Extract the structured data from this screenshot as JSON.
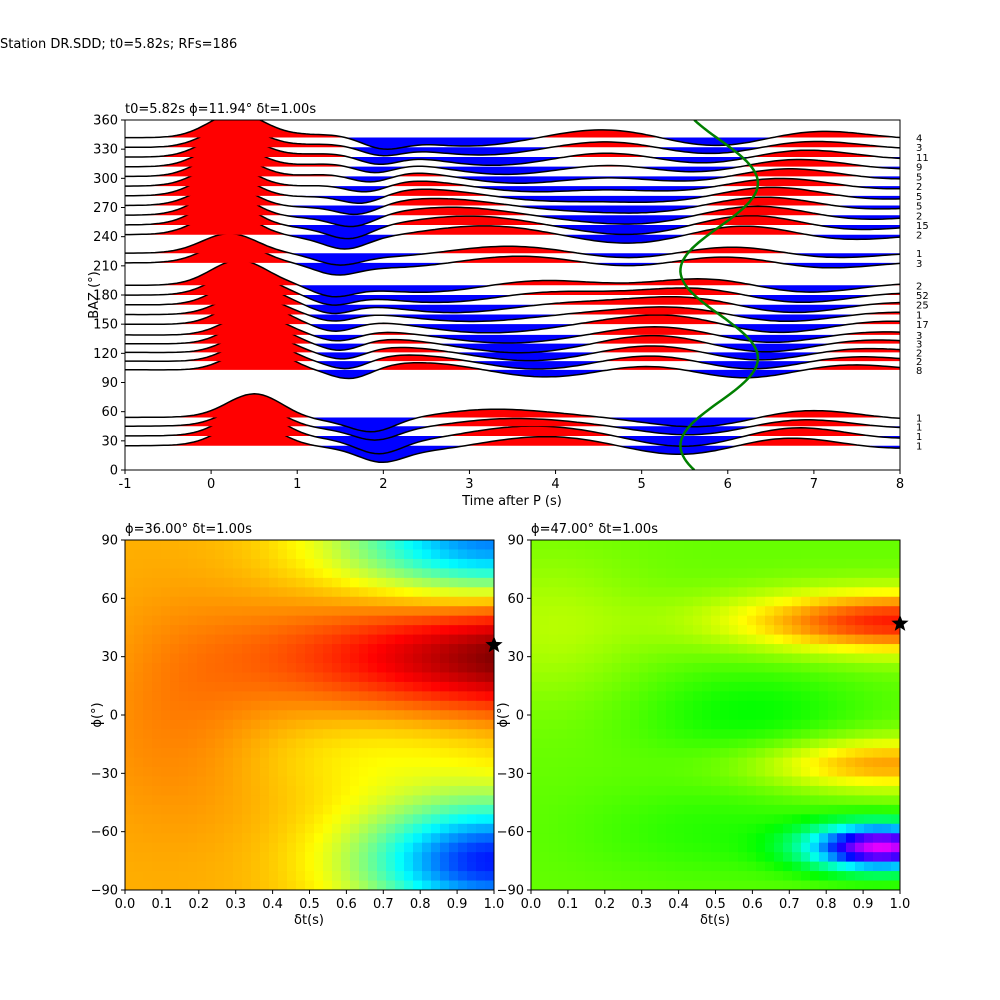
{
  "figure": {
    "title": "Station DR.SDD; t0=5.82s; RFs=186"
  },
  "chart_data": [
    {
      "type": "line",
      "id": "rf-traces",
      "title": "t0=5.82s ϕ=11.94° δt=1.00s",
      "xlabel": "Time after P (s)",
      "ylabel": "BAZ (°)",
      "xlim": [
        -1,
        8
      ],
      "ylim": [
        0,
        360
      ],
      "xticks": [
        -1,
        0,
        1,
        2,
        3,
        4,
        5,
        6,
        7,
        8
      ],
      "yticks": [
        0,
        30,
        60,
        90,
        120,
        150,
        180,
        210,
        240,
        270,
        300,
        330,
        360
      ],
      "fill_positive": "#ff0000",
      "fill_negative": "#0000ff",
      "traces": [
        {
          "baz": 25,
          "count": "1",
          "amp": 1.0
        },
        {
          "baz": 35,
          "count": "1",
          "amp": 1.1
        },
        {
          "baz": 45,
          "count": "1",
          "amp": 0.9
        },
        {
          "baz": 54,
          "count": "1",
          "amp": 1.0
        },
        {
          "baz": 103,
          "count": "8",
          "amp": 1.05
        },
        {
          "baz": 112,
          "count": "2",
          "amp": 1.0
        },
        {
          "baz": 121,
          "count": "2",
          "amp": 0.95
        },
        {
          "baz": 130,
          "count": "3",
          "amp": 1.0
        },
        {
          "baz": 139,
          "count": "3",
          "amp": 0.9
        },
        {
          "baz": 150,
          "count": "17",
          "amp": 1.0
        },
        {
          "baz": 160,
          "count": "1",
          "amp": 0.85
        },
        {
          "baz": 170,
          "count": "25",
          "amp": 1.0
        },
        {
          "baz": 180,
          "count": "52",
          "amp": 1.0
        },
        {
          "baz": 190,
          "count": "2",
          "amp": 1.0
        },
        {
          "baz": 213,
          "count": "3",
          "amp": 0.85
        },
        {
          "baz": 223,
          "count": "1",
          "amp": 0.8
        },
        {
          "baz": 242,
          "count": "2",
          "amp": 1.0
        },
        {
          "baz": 252,
          "count": "15",
          "amp": 1.05
        },
        {
          "baz": 262,
          "count": "2",
          "amp": 1.0
        },
        {
          "baz": 272,
          "count": "5",
          "amp": 0.95
        },
        {
          "baz": 282,
          "count": "5",
          "amp": 1.0
        },
        {
          "baz": 292,
          "count": "2",
          "amp": 0.95
        },
        {
          "baz": 302,
          "count": "5",
          "amp": 1.0
        },
        {
          "baz": 312,
          "count": "9",
          "amp": 1.0
        },
        {
          "baz": 322,
          "count": "11",
          "amp": 1.0
        },
        {
          "baz": 332,
          "count": "3",
          "amp": 0.9
        },
        {
          "baz": 342,
          "count": "4",
          "amp": 1.0
        }
      ],
      "green_curve": {
        "center_time": 5.9,
        "amplitude": 0.45,
        "period_deg": 180,
        "phase_deg": 250,
        "color": "#008000"
      }
    },
    {
      "type": "heatmap",
      "id": "grid-left",
      "title": "ϕ=36.00° δt=1.00s",
      "xlabel": "δt(s)",
      "ylabel": "ϕ(°)",
      "xlim": [
        0.0,
        1.0
      ],
      "ylim": [
        -90,
        90
      ],
      "xticks": [
        "0.0",
        "0.1",
        "0.2",
        "0.3",
        "0.4",
        "0.5",
        "0.6",
        "0.7",
        "0.8",
        "0.9",
        "1.0"
      ],
      "yticks": [
        -90,
        -60,
        -30,
        0,
        30,
        60,
        90
      ],
      "colormap": "jet",
      "best": {
        "dt": 1.0,
        "phi": 36
      }
    },
    {
      "type": "heatmap",
      "id": "grid-right",
      "title": "ϕ=47.00° δt=1.00s",
      "xlabel": "δt(s)",
      "ylabel": "ϕ(°)",
      "xlim": [
        0.0,
        1.0
      ],
      "ylim": [
        -90,
        90
      ],
      "xticks": [
        "0.0",
        "0.1",
        "0.2",
        "0.3",
        "0.4",
        "0.5",
        "0.6",
        "0.7",
        "0.8",
        "0.9",
        "1.0"
      ],
      "yticks": [
        -90,
        -60,
        -30,
        0,
        30,
        60,
        90
      ],
      "colormap": "hsv",
      "best": {
        "dt": 1.0,
        "phi": 47
      }
    }
  ]
}
